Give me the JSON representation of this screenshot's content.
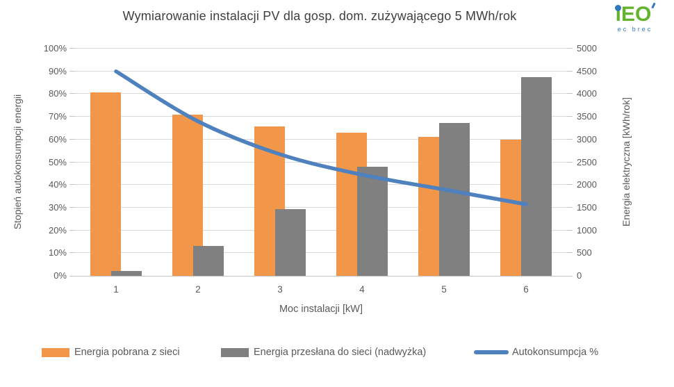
{
  "title": "Wymiarowanie instalacji PV dla gosp. dom. zużywającego 5 MWh/rok",
  "logo": {
    "letter_i": "i",
    "letters_eo": "EO",
    "subtext": "ec brec",
    "green": "#63b32e",
    "blue": "#2e78be"
  },
  "chart_data": {
    "type": "bar",
    "subtype": "clustered-bars-with-line-combo",
    "title": "Wymiarowanie instalacji PV dla gosp. dom. zużywającego 5 MWh/rok",
    "categories": [
      "1",
      "2",
      "3",
      "4",
      "5",
      "6"
    ],
    "xlabel": "Moc instalacji [kW]",
    "ylabel_left": "Stopień autokonsumpcji energii",
    "ylabel_right": "Energia elektryczna [kWh/rok]",
    "left_axis": {
      "min": 0,
      "max": 100,
      "tick_labels": [
        "0%",
        "10%",
        "20%",
        "30%",
        "40%",
        "50%",
        "60%",
        "70%",
        "80%",
        "90%",
        "100%"
      ]
    },
    "right_axis": {
      "min": 0,
      "max": 5000,
      "tick_labels": [
        "0",
        "500",
        "1000",
        "1500",
        "2000",
        "2500",
        "3000",
        "3500",
        "4000",
        "4500",
        "5000"
      ]
    },
    "grid": true,
    "legend_position": "bottom",
    "series": [
      {
        "name": "Energia pobrana z sieci",
        "type": "bar",
        "axis": "right",
        "unit": "kWh/rok",
        "color": "#f2974a",
        "values": [
          4030,
          3540,
          3290,
          3145,
          3065,
          3000
        ]
      },
      {
        "name": "Energia przesłana do sieci (nadwyżka)",
        "type": "bar",
        "axis": "right",
        "unit": "kWh/rok",
        "color": "#808080",
        "values": [
          105,
          665,
          1465,
          2395,
          3370,
          4370
        ]
      },
      {
        "name": "Autokonsumpcja %",
        "type": "line",
        "axis": "left",
        "unit": "%",
        "color": "#4e81bd",
        "values": [
          90,
          68,
          53.5,
          44.5,
          38,
          31.5
        ]
      }
    ]
  }
}
